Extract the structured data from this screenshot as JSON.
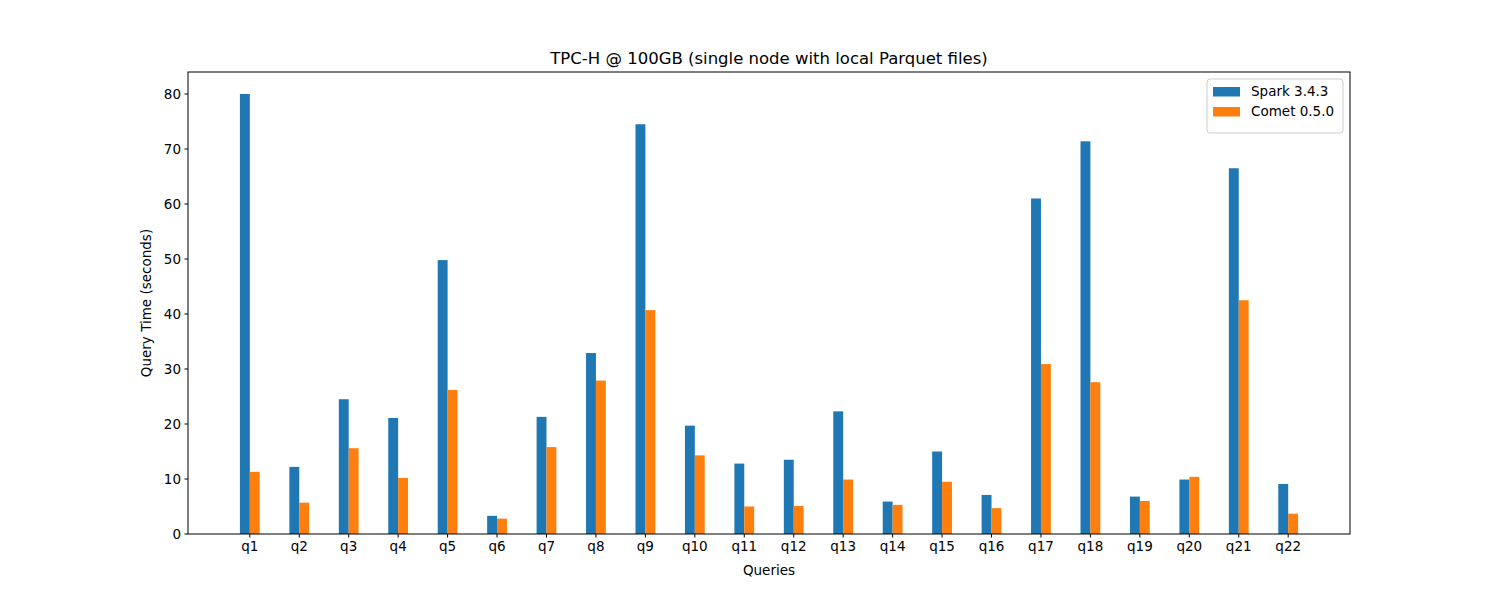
{
  "chart_data": {
    "type": "bar",
    "title": "TPC-H @ 100GB (single node with local Parquet files)",
    "x_label": "Queries",
    "y_label": "Query Time (seconds)",
    "categories": [
      "q1",
      "q2",
      "q3",
      "q4",
      "q5",
      "q6",
      "q7",
      "q8",
      "q9",
      "q10",
      "q11",
      "q12",
      "q13",
      "q14",
      "q15",
      "q16",
      "q17",
      "q18",
      "q19",
      "q20",
      "q21",
      "q22"
    ],
    "series": [
      {
        "name": "Spark 3.4.3",
        "color": "#1f77b4",
        "values": [
          80,
          12.2,
          24.5,
          21.1,
          49.8,
          3.3,
          21.3,
          32.9,
          74.5,
          19.7,
          12.8,
          13.5,
          22.3,
          5.9,
          15,
          7.1,
          61,
          71.4,
          6.8,
          9.9,
          66.5,
          9.1
        ]
      },
      {
        "name": "Comet 0.5.0",
        "color": "#ff7f0e",
        "values": [
          11.3,
          5.7,
          15.6,
          10.2,
          26.2,
          2.8,
          15.8,
          27.9,
          40.7,
          14.3,
          5,
          5.1,
          9.9,
          5.3,
          9.5,
          4.7,
          30.9,
          27.6,
          6,
          10.4,
          42.5,
          3.7
        ]
      }
    ],
    "ylim": [
      0,
      84
    ],
    "yticks": [
      0,
      10,
      20,
      30,
      40,
      50,
      60,
      70,
      80
    ],
    "grid": false,
    "legend": "upper right"
  }
}
